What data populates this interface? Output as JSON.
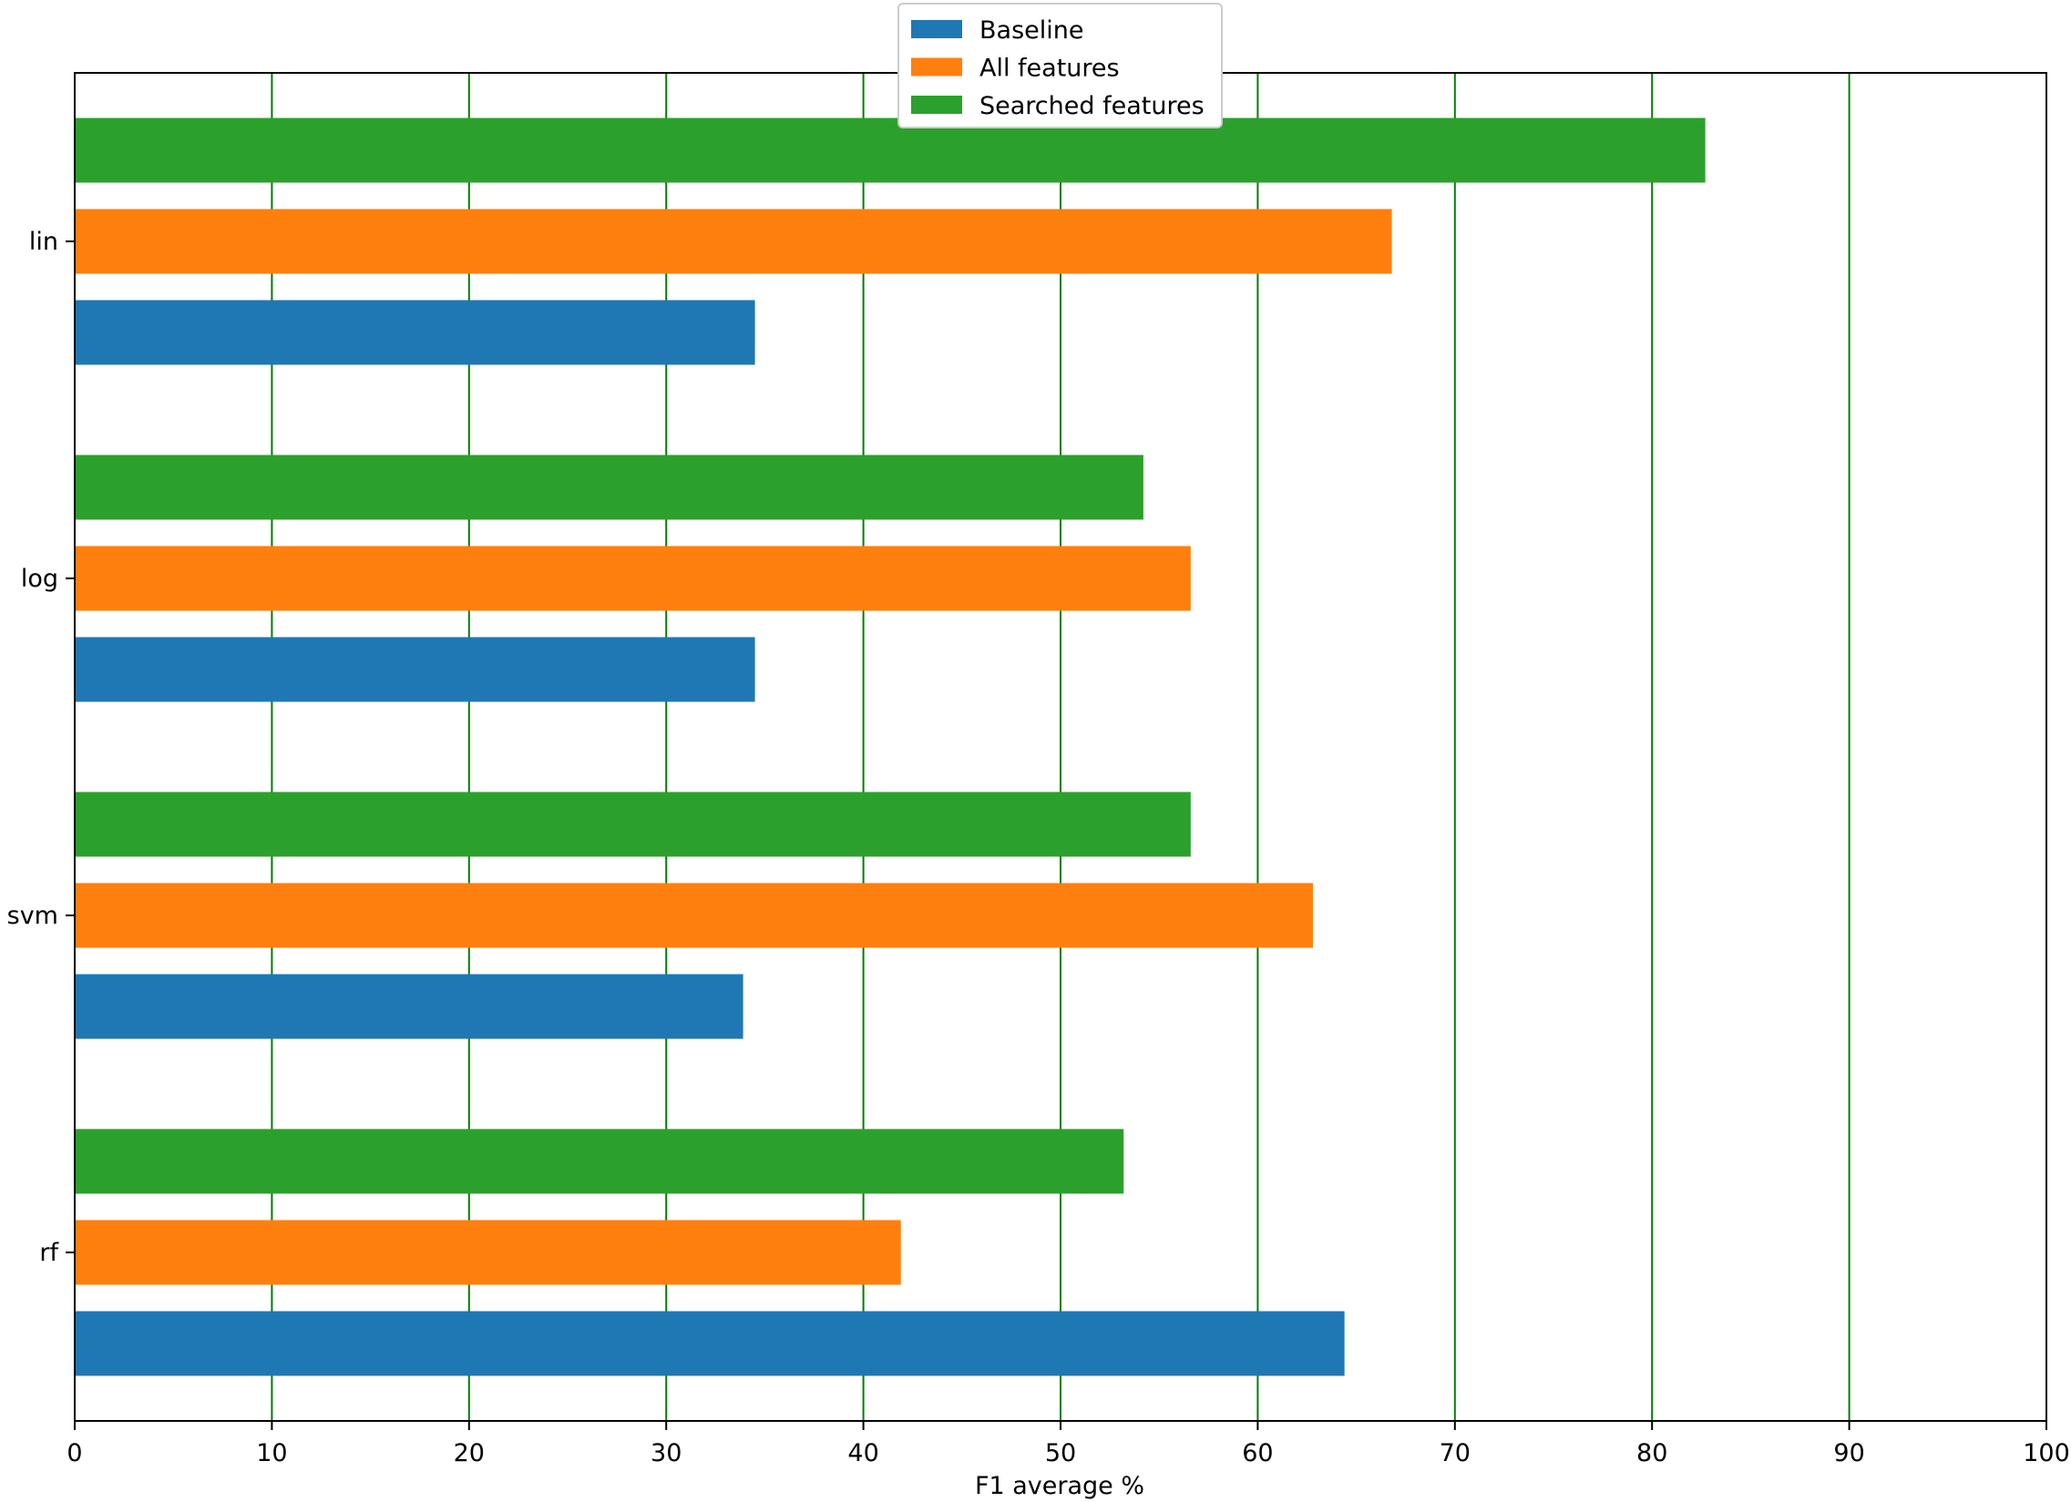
{
  "chart_data": {
    "type": "bar",
    "orientation": "horizontal",
    "title": "",
    "xlabel": "F1 average %",
    "ylabel": "",
    "xlim": [
      0,
      100
    ],
    "xticks": [
      0,
      10,
      20,
      30,
      40,
      50,
      60,
      70,
      80,
      90,
      100
    ],
    "grid": "vertical",
    "grid_color": "#008000",
    "legend_position": "top-center",
    "categories": [
      "lin",
      "log",
      "svm",
      "rf"
    ],
    "series": [
      {
        "name": "Baseline",
        "color": "#1f77b4",
        "values": [
          34.5,
          34.5,
          33.9,
          64.4
        ]
      },
      {
        "name": "All features",
        "color": "#ff7f0e",
        "values": [
          66.8,
          56.6,
          62.8,
          41.9
        ]
      },
      {
        "name": "Searched features",
        "color": "#2ca02c",
        "values": [
          82.7,
          54.2,
          56.6,
          53.2
        ]
      }
    ]
  }
}
